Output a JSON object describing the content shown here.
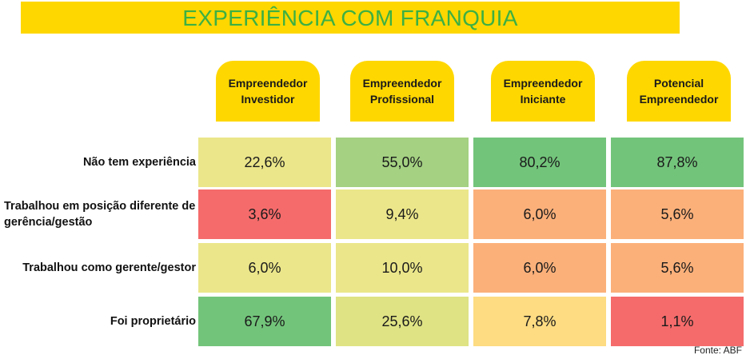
{
  "title": "EXPERIÊNCIA COM FRANQUIA",
  "source": "Fonte: ABF",
  "colors": {
    "title_bg": "#ffd700",
    "title_text": "#3cb043",
    "header_bg": "#ffd700",
    "green_dark": "#73c47b",
    "green_light": "#a4d182",
    "yellow_green": "#dfe384",
    "yellow": "#ebe68a",
    "yellow_orange": "#fddc82",
    "orange": "#fbb07a",
    "red": "#f56b6b"
  },
  "chart_data": {
    "type": "table",
    "title": "EXPERIÊNCIA COM FRANQUIA",
    "columns": [
      "Empreendedor\nInvestidor",
      "Empreendedor\nProfissional",
      "Empreendedor\nIniciante",
      "Potencial\nEmpreendedor"
    ],
    "rows": [
      {
        "label": "Não tem experiência",
        "values": [
          "22,6%",
          "55,0%",
          "80,2%",
          "87,8%"
        ],
        "numeric": [
          22.6,
          55.0,
          80.2,
          87.8
        ],
        "colors": [
          "#ebe68a",
          "#a4d182",
          "#73c47b",
          "#73c47b"
        ]
      },
      {
        "label": "Trabalhou em posição diferente de gerência/gestão",
        "values": [
          "3,6%",
          "9,4%",
          "6,0%",
          "5,6%"
        ],
        "numeric": [
          3.6,
          9.4,
          6.0,
          5.6
        ],
        "colors": [
          "#f56b6b",
          "#ebe68a",
          "#fbb07a",
          "#fbb07a"
        ]
      },
      {
        "label": "Trabalhou como gerente/gestor",
        "values": [
          "6,0%",
          "10,0%",
          "6,0%",
          "5,6%"
        ],
        "numeric": [
          6.0,
          10.0,
          6.0,
          5.6
        ],
        "colors": [
          "#ebe68a",
          "#ebe68a",
          "#fbb07a",
          "#fbb07a"
        ]
      },
      {
        "label": "Foi proprietário",
        "values": [
          "67,9%",
          "25,6%",
          "7,8%",
          "1,1%"
        ],
        "numeric": [
          67.9,
          25.6,
          7.8,
          1.1
        ],
        "colors": [
          "#73c47b",
          "#dfe384",
          "#fddc82",
          "#f56b6b"
        ]
      }
    ]
  }
}
